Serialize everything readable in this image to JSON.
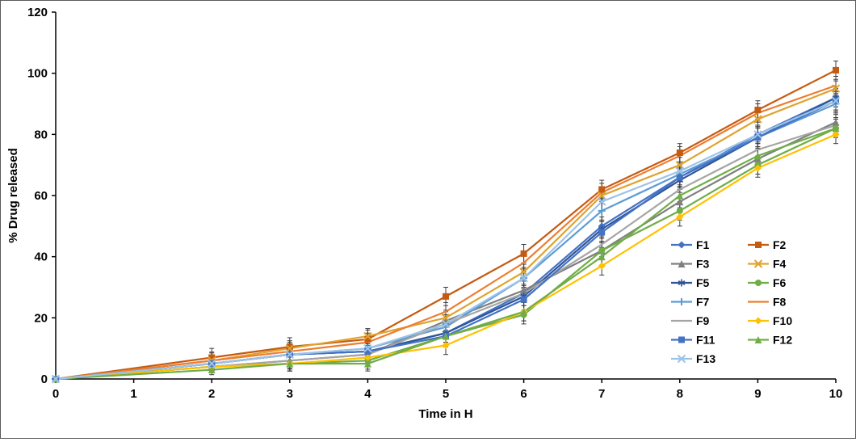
{
  "chart_data": {
    "type": "line",
    "title": "",
    "xlabel": "Time in H",
    "ylabel": "% Drug released",
    "xlim": [
      0,
      10
    ],
    "ylim": [
      0,
      120
    ],
    "x_ticks": [
      0,
      1,
      2,
      3,
      4,
      5,
      6,
      7,
      8,
      9,
      10
    ],
    "y_ticks": [
      0,
      20,
      40,
      60,
      80,
      100,
      120
    ],
    "grid": false,
    "legend_position": "inside-right",
    "error_bars": true,
    "x": [
      0,
      2,
      3,
      4,
      5,
      6,
      7,
      8,
      9,
      10
    ],
    "series": [
      {
        "name": "F1",
        "color": "#4472C4",
        "marker": "diamond",
        "error": 3,
        "values": [
          0,
          5,
          8,
          9,
          15,
          28,
          50,
          66,
          80,
          92
        ]
      },
      {
        "name": "F2",
        "color": "#C55A11",
        "marker": "square",
        "error": 3,
        "values": [
          0,
          7,
          10.5,
          13,
          27,
          41,
          62,
          74,
          88,
          101
        ]
      },
      {
        "name": "F3",
        "color": "#7F7F7F",
        "marker": "triangle",
        "error": 3,
        "values": [
          0,
          4,
          6,
          8,
          19,
          29,
          42,
          58,
          72,
          84
        ]
      },
      {
        "name": "F4",
        "color": "#DFA32E",
        "marker": "x",
        "error": 2.5,
        "values": [
          0,
          6,
          10,
          14,
          20,
          35,
          60,
          70,
          85,
          95
        ]
      },
      {
        "name": "F5",
        "color": "#2F5597",
        "marker": "asterisk",
        "error": 3,
        "values": [
          0,
          5,
          8,
          9,
          15,
          27,
          49,
          65,
          79,
          92
        ]
      },
      {
        "name": "F6",
        "color": "#70AD47",
        "marker": "circle",
        "error": 3,
        "values": [
          0,
          4,
          5,
          6,
          14,
          21,
          42,
          55,
          70,
          82
        ]
      },
      {
        "name": "F7",
        "color": "#5B9BD5",
        "marker": "plus",
        "error": 3.5,
        "values": [
          0,
          5,
          8,
          10,
          17,
          33,
          55,
          67,
          79,
          90
        ]
      },
      {
        "name": "F8",
        "color": "#ED7D31",
        "marker": "none",
        "error": 3,
        "values": [
          0,
          6,
          9,
          12,
          22,
          38,
          61,
          73,
          87,
          96
        ]
      },
      {
        "name": "F9",
        "color": "#A5A5A5",
        "marker": "none",
        "error": 2.5,
        "values": [
          0,
          4,
          6,
          8,
          18,
          28,
          44,
          62,
          75,
          83
        ]
      },
      {
        "name": "F10",
        "color": "#FFC000",
        "marker": "diamond",
        "error": 3,
        "values": [
          0,
          4,
          5,
          7,
          11,
          22,
          37,
          53,
          69,
          80
        ]
      },
      {
        "name": "F11",
        "color": "#4472C4",
        "marker": "square",
        "error": 3.5,
        "values": [
          0,
          5,
          8,
          9,
          14,
          26,
          48,
          66,
          79,
          91
        ]
      },
      {
        "name": "F12",
        "color": "#70AD47",
        "marker": "triangle",
        "error": 3,
        "values": [
          0,
          3,
          5,
          5,
          14,
          22,
          40,
          60,
          73,
          82
        ]
      },
      {
        "name": "F13",
        "color": "#9DC3E6",
        "marker": "x",
        "error": 3,
        "values": [
          0,
          5,
          8,
          10,
          18,
          33,
          58,
          68,
          80,
          91
        ]
      }
    ]
  }
}
